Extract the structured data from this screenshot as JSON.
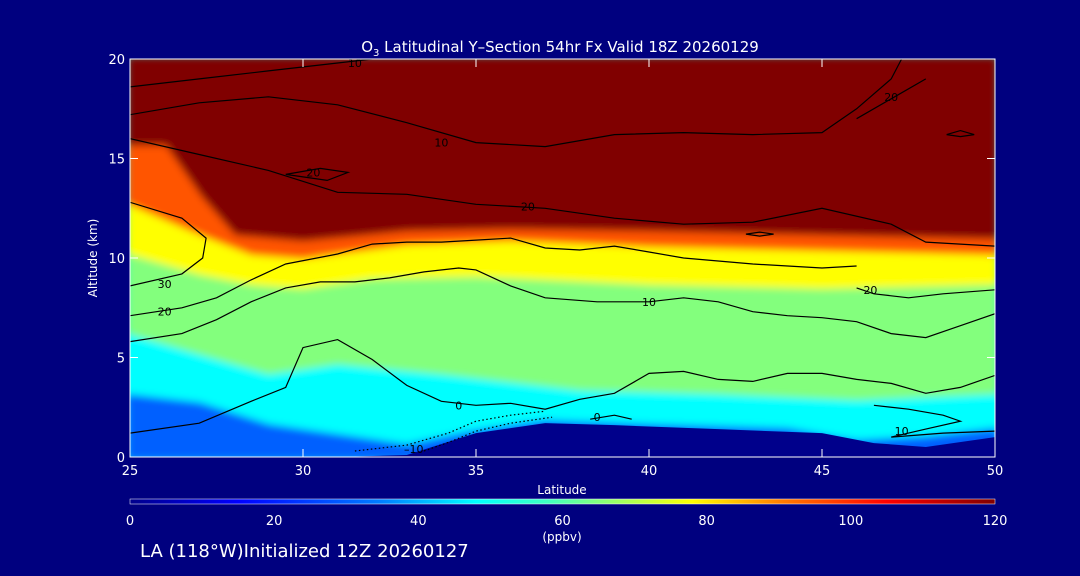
{
  "chart_data": {
    "type": "heatmap",
    "title_main": "O",
    "title_sub": "3",
    "title_rest": " Latitudinal Y–Section 54hr  Fx Valid 18Z 20260129",
    "xlabel": "Latitude",
    "ylabel": "Altitude (km)",
    "xlim": [
      25,
      50
    ],
    "ylim": [
      0,
      20
    ],
    "x_ticks": [
      25,
      30,
      35,
      40,
      45,
      50
    ],
    "y_ticks": [
      0,
      5,
      10,
      15,
      20
    ],
    "colorbar": {
      "label": "(ppbv)",
      "range": [
        0,
        120
      ],
      "ticks": [
        0,
        20,
        40,
        60,
        80,
        100,
        120
      ]
    },
    "color_stops": [
      {
        "value": 0,
        "color": "#00008b"
      },
      {
        "value": 15,
        "color": "#0000ff"
      },
      {
        "value": 35,
        "color": "#0080ff"
      },
      {
        "value": 48,
        "color": "#00ffff"
      },
      {
        "value": 58,
        "color": "#40ffc0"
      },
      {
        "value": 68,
        "color": "#a0ff60"
      },
      {
        "value": 78,
        "color": "#ffff00"
      },
      {
        "value": 90,
        "color": "#ff8000"
      },
      {
        "value": 105,
        "color": "#ff0000"
      },
      {
        "value": 120,
        "color": "#800000"
      }
    ],
    "bands": [
      {
        "name": "red-stratosphere",
        "value": 120,
        "top": [
          [
            25,
            20
          ],
          [
            50,
            20
          ]
        ],
        "bottom": [
          [
            25,
            15.5
          ],
          [
            26,
            15.5
          ],
          [
            27,
            13
          ],
          [
            28,
            11
          ],
          [
            30,
            10.7
          ],
          [
            33,
            11.2
          ],
          [
            36,
            11.3
          ],
          [
            40,
            11.2
          ],
          [
            45,
            11
          ],
          [
            50,
            10.8
          ]
        ]
      },
      {
        "name": "orange-transition",
        "value": 95,
        "top": [
          [
            25,
            15.5
          ],
          [
            26,
            15.5
          ],
          [
            27,
            13
          ],
          [
            28,
            11
          ],
          [
            30,
            10.7
          ],
          [
            33,
            11.2
          ],
          [
            36,
            11.3
          ],
          [
            40,
            11.2
          ],
          [
            45,
            11
          ],
          [
            50,
            10.8
          ]
        ],
        "bottom": [
          [
            25,
            12.5
          ],
          [
            27,
            11
          ],
          [
            28.5,
            10
          ],
          [
            30,
            9.8
          ],
          [
            33,
            10.5
          ],
          [
            36,
            10.7
          ],
          [
            40,
            10.4
          ],
          [
            45,
            10.2
          ],
          [
            50,
            10
          ]
        ]
      },
      {
        "name": "yellow-layer",
        "value": 78,
        "top": [
          [
            25,
            12.5
          ],
          [
            27,
            11
          ],
          [
            28.5,
            10
          ],
          [
            30,
            9.8
          ],
          [
            33,
            10.5
          ],
          [
            36,
            10.7
          ],
          [
            40,
            10.4
          ],
          [
            45,
            10.2
          ],
          [
            50,
            10
          ]
        ],
        "bottom": [
          [
            25,
            10
          ],
          [
            27,
            9
          ],
          [
            28.5,
            8.5
          ],
          [
            30,
            8.3
          ],
          [
            32,
            8.8
          ],
          [
            35,
            8.9
          ],
          [
            40,
            8.5
          ],
          [
            45,
            8.3
          ],
          [
            50,
            8.5
          ]
        ]
      },
      {
        "name": "green-layer",
        "value": 65,
        "top": [
          [
            25,
            10
          ],
          [
            27,
            9
          ],
          [
            28.5,
            8.5
          ],
          [
            30,
            8.3
          ],
          [
            32,
            8.8
          ],
          [
            35,
            8.9
          ],
          [
            40,
            8.5
          ],
          [
            45,
            8.3
          ],
          [
            50,
            8.5
          ]
        ],
        "bottom": [
          [
            25,
            6
          ],
          [
            27,
            5
          ],
          [
            29,
            4
          ],
          [
            31,
            4.5
          ],
          [
            34,
            4
          ],
          [
            38,
            3.2
          ],
          [
            42,
            3
          ],
          [
            46,
            2.7
          ],
          [
            50,
            3
          ]
        ]
      },
      {
        "name": "cyan-layer",
        "value": 48,
        "top": [
          [
            25,
            6
          ],
          [
            27,
            5
          ],
          [
            29,
            4
          ],
          [
            31,
            4.5
          ],
          [
            34,
            4
          ],
          [
            38,
            3.2
          ],
          [
            42,
            3
          ],
          [
            46,
            2.7
          ],
          [
            50,
            3
          ]
        ],
        "bottom": [
          [
            25,
            3
          ],
          [
            27,
            2.6
          ],
          [
            29,
            1.5
          ],
          [
            31,
            1
          ],
          [
            33,
            0.5
          ],
          [
            35,
            1.2
          ],
          [
            37,
            1.7
          ],
          [
            40,
            1.5
          ],
          [
            44,
            1.3
          ],
          [
            46,
            0.7
          ],
          [
            48,
            0.9
          ],
          [
            50,
            1.3
          ]
        ]
      },
      {
        "name": "blue-surface",
        "value": 30,
        "top": [
          [
            25,
            3
          ],
          [
            27,
            2.6
          ],
          [
            29,
            1.5
          ],
          [
            31,
            1
          ],
          [
            33,
            0.5
          ],
          [
            35,
            1.2
          ],
          [
            37,
            1.7
          ],
          [
            40,
            1.5
          ],
          [
            44,
            1.3
          ],
          [
            46,
            0.7
          ],
          [
            48,
            0.9
          ],
          [
            50,
            1.3
          ]
        ],
        "bottom": [
          [
            25,
            0
          ],
          [
            50,
            0
          ]
        ]
      },
      {
        "name": "terrain",
        "value": 0,
        "top": [
          [
            25,
            0
          ],
          [
            31,
            0
          ],
          [
            33,
            0.1
          ],
          [
            35,
            1.2
          ],
          [
            37,
            1.7
          ],
          [
            39,
            1.6
          ],
          [
            42,
            1.4
          ],
          [
            45,
            1.2
          ],
          [
            46.5,
            0.7
          ],
          [
            48,
            0.5
          ],
          [
            50,
            1
          ]
        ],
        "bottom": [
          [
            25,
            0
          ],
          [
            50,
            0
          ]
        ]
      }
    ],
    "contours": [
      {
        "label": "10",
        "label_at": [
          31.5,
          19.8
        ],
        "points": [
          [
            25,
            18.6
          ],
          [
            27,
            19
          ],
          [
            29,
            19.4
          ],
          [
            31,
            19.8
          ],
          [
            32,
            20
          ]
        ]
      },
      {
        "label": "10",
        "label_at": [
          34,
          15.8
        ],
        "points": [
          [
            25,
            17.2
          ],
          [
            27,
            17.8
          ],
          [
            29,
            18.1
          ],
          [
            31,
            17.7
          ],
          [
            33,
            16.8
          ],
          [
            35,
            15.8
          ],
          [
            37,
            15.6
          ],
          [
            39,
            16.2
          ],
          [
            41,
            16.3
          ],
          [
            43,
            16.2
          ],
          [
            45,
            16.3
          ],
          [
            46,
            17.5
          ],
          [
            47,
            19
          ],
          [
            47.3,
            20
          ]
        ]
      },
      {
        "label": "20",
        "label_at": [
          36.5,
          12.6
        ],
        "points": [
          [
            25,
            16
          ],
          [
            27,
            15.2
          ],
          [
            29,
            14.4
          ],
          [
            31,
            13.3
          ],
          [
            33,
            13.2
          ],
          [
            35,
            12.7
          ],
          [
            37,
            12.5
          ],
          [
            39,
            12
          ],
          [
            41,
            11.7
          ],
          [
            43,
            11.8
          ],
          [
            45,
            12.5
          ],
          [
            47,
            11.7
          ],
          [
            48,
            10.8
          ],
          [
            50,
            10.6
          ]
        ]
      },
      {
        "label": "20",
        "label_at": [
          47,
          18.1
        ],
        "points": [
          [
            46,
            17
          ],
          [
            47,
            18
          ],
          [
            48,
            19
          ]
        ]
      },
      {
        "label": "20",
        "label_at": [
          30.3,
          14.3
        ],
        "points": [
          [
            29.5,
            14.2
          ],
          [
            30.5,
            14.5
          ],
          [
            31.3,
            14.3
          ],
          [
            30.7,
            13.9
          ],
          [
            29.5,
            14.2
          ]
        ]
      },
      {
        "label": "",
        "label_at": null,
        "points": [
          [
            48.6,
            16.2
          ],
          [
            49,
            16.4
          ],
          [
            49.4,
            16.2
          ],
          [
            49,
            16.1
          ],
          [
            48.6,
            16.2
          ]
        ]
      },
      {
        "label": "",
        "label_at": null,
        "points": [
          [
            42.8,
            11.2
          ],
          [
            43.2,
            11.3
          ],
          [
            43.6,
            11.2
          ],
          [
            43.2,
            11.1
          ],
          [
            42.8,
            11.2
          ]
        ]
      },
      {
        "label": "30",
        "label_at": [
          26,
          8.7
        ],
        "points": [
          [
            25,
            12.8
          ],
          [
            26.5,
            12
          ],
          [
            27.2,
            11
          ],
          [
            27.1,
            10
          ],
          [
            26.5,
            9.2
          ],
          [
            25,
            8.6
          ]
        ]
      },
      {
        "label": "20",
        "label_at": [
          26,
          7.3
        ],
        "points": [
          [
            25,
            7.1
          ],
          [
            26.5,
            7.5
          ],
          [
            27.5,
            8
          ],
          [
            28.5,
            8.9
          ],
          [
            29.5,
            9.7
          ],
          [
            31,
            10.2
          ],
          [
            32,
            10.7
          ],
          [
            33,
            10.8
          ],
          [
            34,
            10.8
          ],
          [
            35,
            10.9
          ],
          [
            36,
            11
          ],
          [
            37,
            10.5
          ],
          [
            38,
            10.4
          ],
          [
            39,
            10.6
          ],
          [
            40,
            10.3
          ],
          [
            41,
            10
          ],
          [
            43,
            9.7
          ],
          [
            45,
            9.5
          ],
          [
            46,
            9.6
          ]
        ]
      },
      {
        "label": "20",
        "label_at": [
          46.4,
          8.4
        ],
        "points": [
          [
            46,
            8.5
          ],
          [
            46.5,
            8.2
          ],
          [
            47.5,
            8
          ],
          [
            48.5,
            8.2
          ],
          [
            50,
            8.4
          ]
        ]
      },
      {
        "label": "10",
        "label_at": [
          40,
          7.8
        ],
        "points": [
          [
            25,
            5.8
          ],
          [
            26.5,
            6.2
          ],
          [
            27.5,
            6.9
          ],
          [
            28.5,
            7.8
          ],
          [
            29.5,
            8.5
          ],
          [
            30.5,
            8.8
          ],
          [
            31.5,
            8.8
          ],
          [
            32.5,
            9
          ],
          [
            33.5,
            9.3
          ],
          [
            34.5,
            9.5
          ],
          [
            35,
            9.4
          ],
          [
            36,
            8.6
          ],
          [
            37,
            8
          ],
          [
            38.5,
            7.8
          ],
          [
            40,
            7.8
          ],
          [
            41,
            8
          ],
          [
            42,
            7.8
          ],
          [
            43,
            7.3
          ],
          [
            44,
            7.1
          ],
          [
            45,
            7
          ],
          [
            46,
            6.8
          ],
          [
            47,
            6.2
          ],
          [
            48,
            6
          ],
          [
            49,
            6.6
          ],
          [
            50,
            7.2
          ]
        ]
      },
      {
        "label": "0",
        "label_at": [
          34.5,
          2.6
        ],
        "points": [
          [
            25,
            1.2
          ],
          [
            27,
            1.7
          ],
          [
            28.5,
            2.8
          ],
          [
            29.5,
            3.5
          ],
          [
            30,
            5.5
          ],
          [
            31,
            5.9
          ],
          [
            32,
            4.9
          ],
          [
            33,
            3.6
          ],
          [
            34,
            2.8
          ],
          [
            35,
            2.6
          ],
          [
            36,
            2.7
          ],
          [
            37,
            2.4
          ],
          [
            38,
            2.9
          ],
          [
            39,
            3.2
          ],
          [
            40,
            4.2
          ],
          [
            41,
            4.3
          ],
          [
            42,
            3.9
          ],
          [
            43,
            3.8
          ],
          [
            44,
            4.2
          ],
          [
            45,
            4.2
          ],
          [
            46,
            3.9
          ],
          [
            47,
            3.7
          ],
          [
            48,
            3.2
          ],
          [
            49,
            3.5
          ],
          [
            50,
            4.1
          ]
        ]
      },
      {
        "label": "10",
        "label_at": [
          47.3,
          1.3
        ],
        "points": [
          [
            46.5,
            2.6
          ],
          [
            47.5,
            2.4
          ],
          [
            48.5,
            2.1
          ],
          [
            49,
            1.8
          ],
          [
            48,
            1.4
          ],
          [
            47,
            1
          ],
          [
            48.5,
            1.2
          ],
          [
            50,
            1.3
          ]
        ]
      },
      {
        "label": "0",
        "label_at": [
          38.5,
          2
        ],
        "points": [
          [
            38.3,
            1.9
          ],
          [
            39,
            2.1
          ],
          [
            39.5,
            1.9
          ]
        ]
      }
    ],
    "dotted_contours": [
      {
        "label": "–10",
        "label_at": [
          33.2,
          0.4
        ],
        "points": [
          [
            31.5,
            0.3
          ],
          [
            33,
            0.6
          ],
          [
            34.2,
            1.2
          ],
          [
            35,
            1.8
          ],
          [
            36,
            2.1
          ],
          [
            37,
            2.3
          ]
        ]
      },
      {
        "label": "",
        "label_at": null,
        "points": [
          [
            33.5,
            0.3
          ],
          [
            34.3,
            0.8
          ],
          [
            35,
            1.3
          ],
          [
            36,
            1.7
          ],
          [
            37.2,
            2
          ]
        ]
      }
    ]
  },
  "footer": {
    "text": "LA (118°W)Initialized 12Z 20260127"
  }
}
